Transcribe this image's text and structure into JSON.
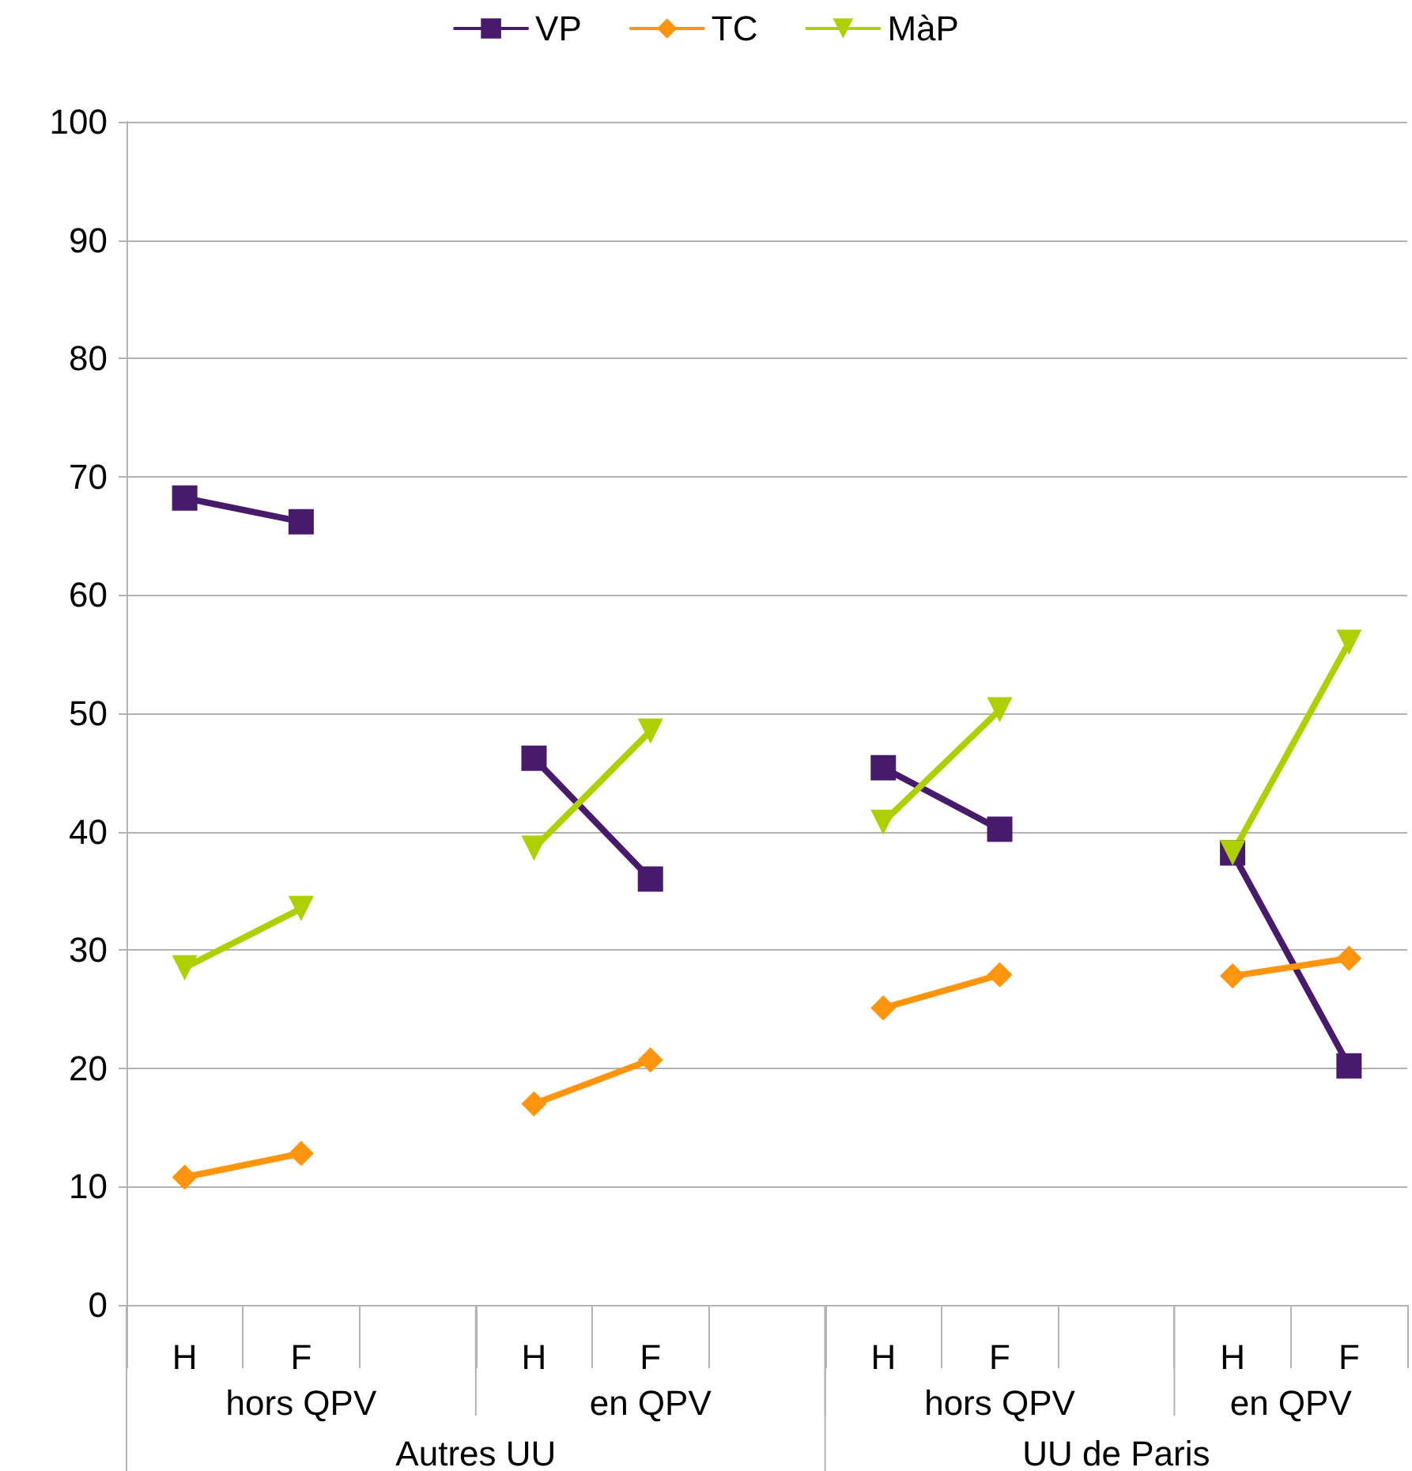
{
  "chart_data": {
    "type": "line",
    "categories": [
      "H",
      "F",
      null,
      "H",
      "F",
      null,
      "H",
      "F",
      null,
      "H",
      "F"
    ],
    "series": [
      {
        "name": "VP",
        "color": "#481a6c",
        "marker": "square",
        "values": [
          68.2,
          66.2,
          null,
          46.2,
          36.0,
          null,
          45.4,
          40.2,
          null,
          38.2,
          20.2
        ]
      },
      {
        "name": "TC",
        "color": "#ff950e",
        "marker": "diamond",
        "values": [
          10.8,
          12.8,
          null,
          17.0,
          20.7,
          null,
          25.1,
          27.9,
          null,
          27.8,
          29.3
        ]
      },
      {
        "name": "MàP",
        "color": "#aecf00",
        "marker": "triangle",
        "values": [
          28.5,
          33.5,
          null,
          38.6,
          48.5,
          null,
          40.8,
          50.3,
          null,
          38.2,
          56.0
        ]
      }
    ],
    "annotations": [
      "hors QPV",
      "en QPV",
      "hors QPV",
      "en QPV",
      "Autres UU",
      "UU de Paris"
    ],
    "ylim": [
      0,
      100
    ],
    "yticks": [
      0,
      10,
      20,
      30,
      40,
      50,
      60,
      70,
      80,
      90,
      100
    ],
    "grid": "y",
    "legend": "top",
    "line_style": "solid"
  }
}
